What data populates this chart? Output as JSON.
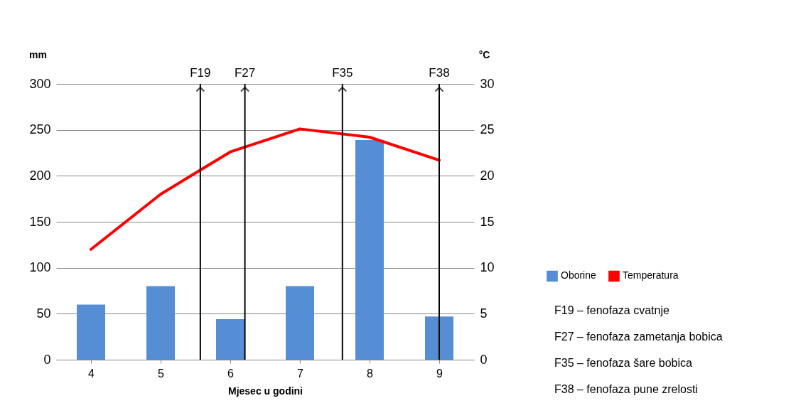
{
  "chart_data": {
    "type": "bar",
    "x": [
      4,
      5,
      6,
      7,
      8,
      9
    ],
    "xlim": [
      3.5,
      9.5
    ],
    "xticks": [
      4,
      5,
      6,
      7,
      8,
      9
    ],
    "xlabel": "Mjesec u godini",
    "ylabel": "mm",
    "y2label": "°C",
    "series": [
      {
        "name": "Oborine",
        "color": "#558ed5",
        "values": [
          60,
          80,
          44,
          80,
          239,
          47
        ]
      },
      {
        "name": "Temperatura",
        "type": "line",
        "axis": "y2",
        "color": "#ff0000",
        "values": [
          12,
          18,
          22.6,
          25.1,
          24.2,
          21.7
        ]
      }
    ],
    "ylim": [
      0,
      300
    ],
    "yticks": [
      0,
      50,
      100,
      150,
      200,
      250,
      300
    ],
    "y2lim": [
      0,
      30
    ],
    "y2ticks": [
      0,
      5,
      10,
      15,
      20,
      25,
      30
    ],
    "ref_lines": [
      {
        "axis": "x",
        "value": 5.57,
        "label": "F19"
      },
      {
        "axis": "x",
        "value": 6.21,
        "label": "F27"
      },
      {
        "axis": "x",
        "value": 7.61,
        "label": "F35"
      },
      {
        "axis": "x",
        "value": 9.0,
        "label": "F38"
      }
    ],
    "annotations": [
      "F19 –  fenofaza cvatnje",
      "F27 – fenofaza zametanja bobica",
      "F35 – fenofaza šare bobica",
      "F38 – fenofaza pune zrelosti"
    ],
    "grid": "y",
    "legend": "right"
  }
}
